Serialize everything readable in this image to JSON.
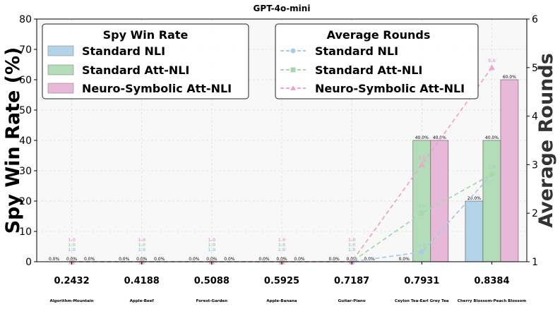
{
  "chart_data": {
    "type": "bar",
    "title": "GPT-4o-mini",
    "ylabel": "Spy Win Rate (%)",
    "ylabel_right": "Average Rounds",
    "ylim": [
      0,
      80
    ],
    "ylim_right": [
      1,
      6
    ],
    "grid": true,
    "scores": [
      "0.2432",
      "0.4188",
      "0.5088",
      "0.5925",
      "0.7187",
      "0.7931",
      "0.8384"
    ],
    "categories": [
      "Algorithm-Mountain",
      "Apple-Beef",
      "Forest-Garden",
      "Apple-Banana",
      "Guitar-Piano",
      "Ceylon Tea-Earl Grey Tea",
      "Cherry Blossom-Peach Blossom"
    ],
    "left_ticks": [
      "0",
      "10",
      "20",
      "30",
      "40",
      "50",
      "60",
      "70",
      "80"
    ],
    "right_ticks": [
      "1",
      "2",
      "3",
      "4",
      "5",
      "6"
    ],
    "legend_bars_title": "Spy Win Rate",
    "legend_lines_title": "Average Rounds",
    "series": [
      {
        "name": "Standard NLI",
        "color": "#b3d4e8",
        "values": [
          0,
          0,
          0,
          0,
          0,
          0,
          20
        ]
      },
      {
        "name": "Standard Att-NLI",
        "color": "#b3ddb8",
        "values": [
          0,
          0,
          0,
          0,
          0,
          40,
          40
        ]
      },
      {
        "name": "Neuro-Symbolic Att-NLI",
        "color": "#e8b8d8",
        "values": [
          0,
          0,
          0,
          0,
          0,
          40,
          60
        ]
      }
    ],
    "bar_labels": [
      [
        "0.0%",
        "0.0%",
        "0.0%",
        "0.0%",
        "0.0%",
        "0.0%",
        "20.0%"
      ],
      [
        "0.0%",
        "0.0%",
        "0.0%",
        "0.0%",
        "0.0%",
        "40.0%",
        "40.0%"
      ],
      [
        "0.0%",
        "0.0%",
        "0.0%",
        "0.0%",
        "0.0%",
        "40.0%",
        "60.0%"
      ]
    ],
    "line_series": [
      {
        "name": "Standard NLI",
        "color": "#a8cbe6",
        "marker": "circle",
        "values": [
          1.0,
          1.0,
          1.0,
          1.0,
          1.0,
          1.2,
          2.8
        ],
        "labels": [
          "1.0",
          "1.0",
          "1.0",
          "1.0",
          "1.0",
          "1.2",
          "2.8"
        ]
      },
      {
        "name": "Standard Att-NLI",
        "color": "#a6d8ac",
        "marker": "square",
        "values": [
          1.0,
          1.0,
          1.0,
          1.0,
          1.0,
          2.0,
          2.8
        ],
        "labels": [
          "1.0",
          "1.0",
          "1.0",
          "1.0",
          "1.0",
          "2.0",
          "2.8"
        ]
      },
      {
        "name": "Neuro-Symbolic Att-NLI",
        "color": "#eaa8cf",
        "marker": "triangle",
        "values": [
          1.0,
          1.0,
          1.0,
          1.0,
          1.0,
          3.0,
          5.0
        ],
        "labels": [
          "1.0",
          "1.0",
          "1.0",
          "1.0",
          "1.0",
          "3.0",
          "5.0"
        ]
      }
    ]
  }
}
